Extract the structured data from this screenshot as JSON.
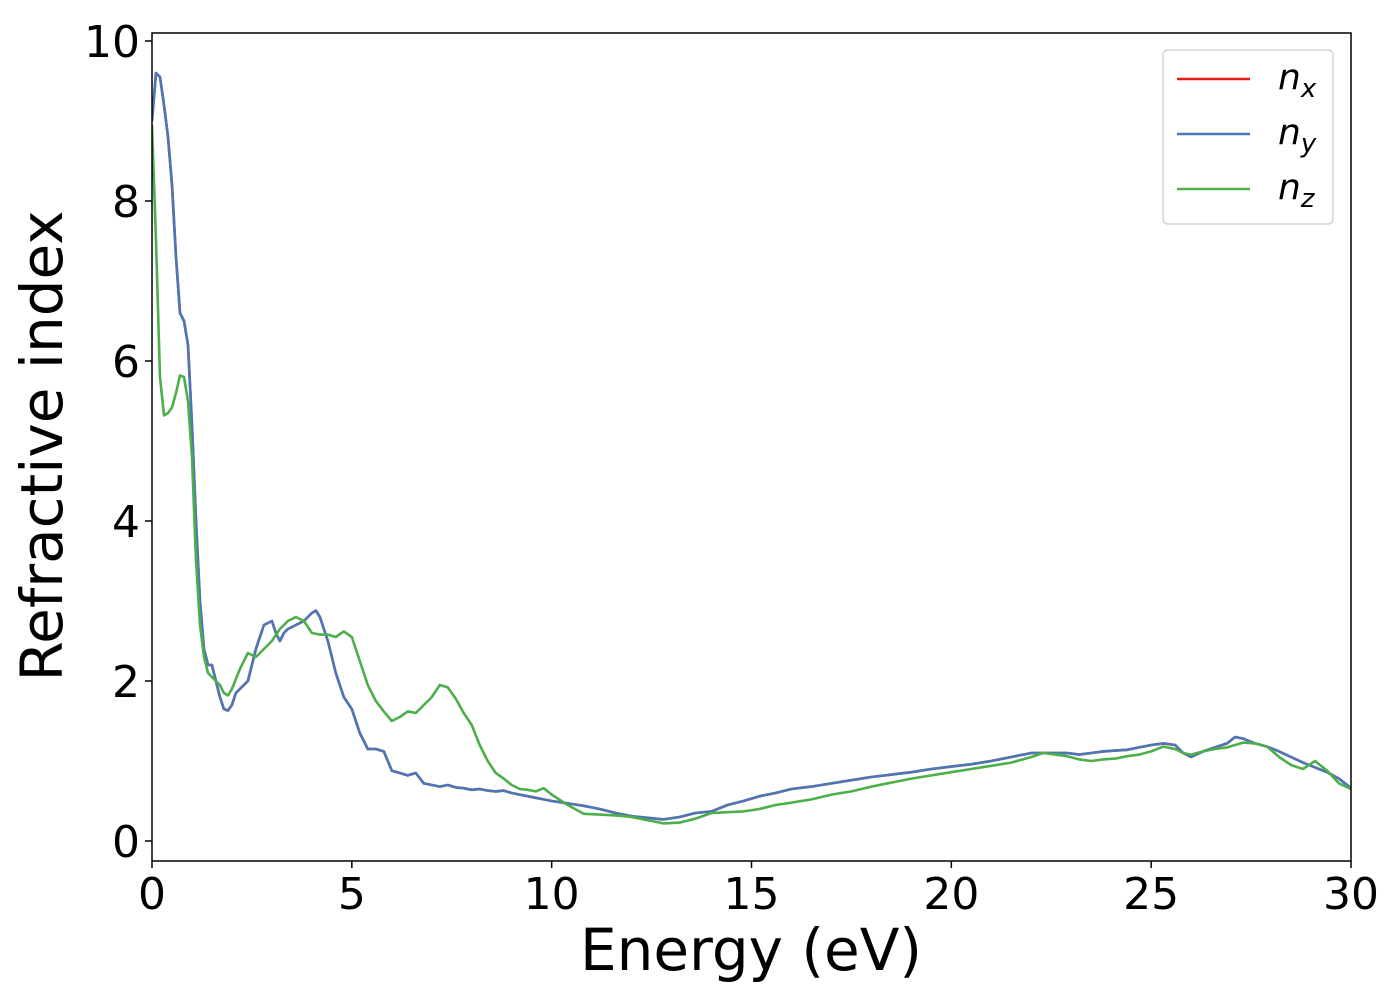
{
  "chart_data": {
    "type": "line",
    "title": "",
    "xlabel": "Energy (eV)",
    "ylabel": "Refractive index",
    "xlim": [
      0,
      30
    ],
    "ylim": [
      -0.25,
      10.1
    ],
    "xticks": [
      0,
      5,
      10,
      15,
      20,
      25,
      30
    ],
    "yticks": [
      0,
      2,
      4,
      6,
      8,
      10
    ],
    "grid": false,
    "legend_position": "top-right",
    "series": [
      {
        "name": "n_x",
        "legend_base": "n",
        "legend_sub": "x",
        "color": "#e41a1c",
        "x": [
          0,
          0.1,
          0.2,
          0.3,
          0.4,
          0.5,
          0.6,
          0.7,
          0.8,
          0.9,
          1.0,
          1.1,
          1.2,
          1.3,
          1.4,
          1.5,
          1.6,
          1.7,
          1.8,
          1.9,
          2.0,
          2.1,
          2.2,
          2.4,
          2.6,
          2.8,
          3.0,
          3.1,
          3.2,
          3.3,
          3.4,
          3.6,
          3.8,
          4.0,
          4.1,
          4.2,
          4.4,
          4.6,
          4.8,
          5.0,
          5.2,
          5.4,
          5.6,
          5.8,
          6.0,
          6.2,
          6.4,
          6.6,
          6.8,
          7.0,
          7.2,
          7.4,
          7.6,
          7.8,
          8.0,
          8.2,
          8.4,
          8.6,
          8.8,
          9.0,
          9.2,
          9.4,
          9.6,
          9.8,
          10.0,
          10.4,
          10.8,
          11.0,
          11.2,
          11.6,
          12.0,
          12.4,
          12.8,
          13.2,
          13.6,
          14.0,
          14.4,
          14.8,
          15.2,
          15.6,
          16.0,
          16.5,
          17.0,
          17.5,
          18.0,
          18.5,
          19.0,
          19.5,
          20.0,
          20.5,
          21.0,
          21.5,
          22.0,
          22.3,
          22.6,
          22.9,
          23.2,
          23.5,
          23.8,
          24.1,
          24.4,
          24.7,
          25.0,
          25.3,
          25.6,
          25.8,
          26.0,
          26.3,
          26.6,
          26.9,
          27.1,
          27.3,
          27.6,
          27.9,
          28.2,
          28.5,
          28.8,
          29.1,
          29.4,
          29.7,
          30.0
        ],
        "values": [
          9.0,
          9.6,
          9.55,
          9.2,
          8.8,
          8.2,
          7.3,
          6.6,
          6.5,
          6.2,
          5.2,
          4.0,
          3.0,
          2.4,
          2.2,
          2.2,
          2.0,
          1.8,
          1.65,
          1.63,
          1.7,
          1.85,
          1.9,
          2.0,
          2.4,
          2.7,
          2.75,
          2.6,
          2.5,
          2.6,
          2.65,
          2.7,
          2.75,
          2.85,
          2.88,
          2.8,
          2.5,
          2.1,
          1.8,
          1.65,
          1.35,
          1.15,
          1.15,
          1.12,
          0.88,
          0.85,
          0.82,
          0.85,
          0.72,
          0.7,
          0.68,
          0.7,
          0.67,
          0.66,
          0.64,
          0.65,
          0.63,
          0.62,
          0.63,
          0.6,
          0.58,
          0.56,
          0.54,
          0.52,
          0.5,
          0.47,
          0.44,
          0.42,
          0.4,
          0.35,
          0.31,
          0.29,
          0.27,
          0.3,
          0.35,
          0.37,
          0.45,
          0.5,
          0.56,
          0.6,
          0.65,
          0.68,
          0.72,
          0.76,
          0.8,
          0.83,
          0.86,
          0.9,
          0.93,
          0.96,
          1.0,
          1.05,
          1.1,
          1.1,
          1.1,
          1.1,
          1.08,
          1.1,
          1.12,
          1.13,
          1.14,
          1.17,
          1.2,
          1.22,
          1.2,
          1.1,
          1.05,
          1.12,
          1.17,
          1.22,
          1.3,
          1.28,
          1.22,
          1.18,
          1.12,
          1.05,
          0.98,
          0.92,
          0.86,
          0.78,
          0.66
        ]
      },
      {
        "name": "n_y",
        "legend_base": "n",
        "legend_sub": "y",
        "color": "#4a78b6",
        "x": [
          0,
          0.1,
          0.2,
          0.3,
          0.4,
          0.5,
          0.6,
          0.7,
          0.8,
          0.9,
          1.0,
          1.1,
          1.2,
          1.3,
          1.4,
          1.5,
          1.6,
          1.7,
          1.8,
          1.9,
          2.0,
          2.1,
          2.2,
          2.4,
          2.6,
          2.8,
          3.0,
          3.1,
          3.2,
          3.3,
          3.4,
          3.6,
          3.8,
          4.0,
          4.1,
          4.2,
          4.4,
          4.6,
          4.8,
          5.0,
          5.2,
          5.4,
          5.6,
          5.8,
          6.0,
          6.2,
          6.4,
          6.6,
          6.8,
          7.0,
          7.2,
          7.4,
          7.6,
          7.8,
          8.0,
          8.2,
          8.4,
          8.6,
          8.8,
          9.0,
          9.2,
          9.4,
          9.6,
          9.8,
          10.0,
          10.4,
          10.8,
          11.0,
          11.2,
          11.6,
          12.0,
          12.4,
          12.8,
          13.2,
          13.6,
          14.0,
          14.4,
          14.8,
          15.2,
          15.6,
          16.0,
          16.5,
          17.0,
          17.5,
          18.0,
          18.5,
          19.0,
          19.5,
          20.0,
          20.5,
          21.0,
          21.5,
          22.0,
          22.3,
          22.6,
          22.9,
          23.2,
          23.5,
          23.8,
          24.1,
          24.4,
          24.7,
          25.0,
          25.3,
          25.6,
          25.8,
          26.0,
          26.3,
          26.6,
          26.9,
          27.1,
          27.3,
          27.6,
          27.9,
          28.2,
          28.5,
          28.8,
          29.1,
          29.4,
          29.7,
          30.0
        ],
        "values": [
          9.0,
          9.6,
          9.55,
          9.2,
          8.8,
          8.2,
          7.3,
          6.6,
          6.5,
          6.2,
          5.2,
          4.0,
          3.0,
          2.4,
          2.2,
          2.2,
          2.0,
          1.8,
          1.65,
          1.63,
          1.7,
          1.85,
          1.9,
          2.0,
          2.4,
          2.7,
          2.75,
          2.6,
          2.5,
          2.6,
          2.65,
          2.7,
          2.75,
          2.85,
          2.88,
          2.8,
          2.5,
          2.1,
          1.8,
          1.65,
          1.35,
          1.15,
          1.15,
          1.12,
          0.88,
          0.85,
          0.82,
          0.85,
          0.72,
          0.7,
          0.68,
          0.7,
          0.67,
          0.66,
          0.64,
          0.65,
          0.63,
          0.62,
          0.63,
          0.6,
          0.58,
          0.56,
          0.54,
          0.52,
          0.5,
          0.47,
          0.44,
          0.42,
          0.4,
          0.35,
          0.31,
          0.29,
          0.27,
          0.3,
          0.35,
          0.37,
          0.45,
          0.5,
          0.56,
          0.6,
          0.65,
          0.68,
          0.72,
          0.76,
          0.8,
          0.83,
          0.86,
          0.9,
          0.93,
          0.96,
          1.0,
          1.05,
          1.1,
          1.1,
          1.1,
          1.1,
          1.08,
          1.1,
          1.12,
          1.13,
          1.14,
          1.17,
          1.2,
          1.22,
          1.2,
          1.1,
          1.05,
          1.12,
          1.17,
          1.22,
          1.3,
          1.28,
          1.22,
          1.18,
          1.12,
          1.05,
          0.98,
          0.92,
          0.86,
          0.78,
          0.66
        ]
      },
      {
        "name": "n_z",
        "legend_base": "n",
        "legend_sub": "z",
        "color": "#4daf4a",
        "x": [
          0,
          0.1,
          0.2,
          0.3,
          0.4,
          0.5,
          0.6,
          0.7,
          0.8,
          0.9,
          1.0,
          1.1,
          1.2,
          1.3,
          1.4,
          1.5,
          1.6,
          1.7,
          1.8,
          1.9,
          2.0,
          2.2,
          2.4,
          2.6,
          2.8,
          3.0,
          3.2,
          3.4,
          3.6,
          3.8,
          4.0,
          4.2,
          4.4,
          4.6,
          4.8,
          5.0,
          5.2,
          5.4,
          5.6,
          5.8,
          6.0,
          6.2,
          6.4,
          6.6,
          6.8,
          7.0,
          7.2,
          7.4,
          7.6,
          7.8,
          8.0,
          8.2,
          8.4,
          8.6,
          8.8,
          9.0,
          9.2,
          9.4,
          9.6,
          9.8,
          10.0,
          10.4,
          10.8,
          11.2,
          11.6,
          12.0,
          12.4,
          12.8,
          13.2,
          13.6,
          14.0,
          14.4,
          14.8,
          15.2,
          15.6,
          16.0,
          16.5,
          17.0,
          17.5,
          18.0,
          18.5,
          19.0,
          19.5,
          20.0,
          20.5,
          21.0,
          21.5,
          22.0,
          22.3,
          22.6,
          22.9,
          23.2,
          23.5,
          23.8,
          24.1,
          24.4,
          24.7,
          25.0,
          25.3,
          25.6,
          25.8,
          26.0,
          26.3,
          26.6,
          26.9,
          27.1,
          27.3,
          27.6,
          27.9,
          28.2,
          28.5,
          28.8,
          29.1,
          29.4,
          29.7,
          30.0
        ],
        "values": [
          8.95,
          7.5,
          5.8,
          5.32,
          5.35,
          5.42,
          5.6,
          5.82,
          5.8,
          5.5,
          4.8,
          3.5,
          2.7,
          2.3,
          2.1,
          2.05,
          2.0,
          1.95,
          1.85,
          1.82,
          1.9,
          2.15,
          2.35,
          2.3,
          2.4,
          2.5,
          2.65,
          2.75,
          2.8,
          2.75,
          2.6,
          2.58,
          2.58,
          2.55,
          2.62,
          2.55,
          2.25,
          1.95,
          1.75,
          1.62,
          1.5,
          1.55,
          1.62,
          1.6,
          1.7,
          1.8,
          1.95,
          1.92,
          1.78,
          1.6,
          1.45,
          1.2,
          1.0,
          0.85,
          0.78,
          0.7,
          0.65,
          0.64,
          0.62,
          0.66,
          0.58,
          0.45,
          0.34,
          0.33,
          0.32,
          0.3,
          0.26,
          0.22,
          0.23,
          0.28,
          0.35,
          0.36,
          0.37,
          0.4,
          0.45,
          0.48,
          0.52,
          0.58,
          0.62,
          0.68,
          0.73,
          0.78,
          0.82,
          0.86,
          0.9,
          0.94,
          0.98,
          1.05,
          1.1,
          1.08,
          1.06,
          1.02,
          1.0,
          1.02,
          1.03,
          1.06,
          1.08,
          1.12,
          1.18,
          1.15,
          1.1,
          1.08,
          1.12,
          1.15,
          1.17,
          1.2,
          1.23,
          1.22,
          1.18,
          1.05,
          0.95,
          0.9,
          1.0,
          0.88,
          0.72,
          0.65
        ]
      }
    ]
  }
}
